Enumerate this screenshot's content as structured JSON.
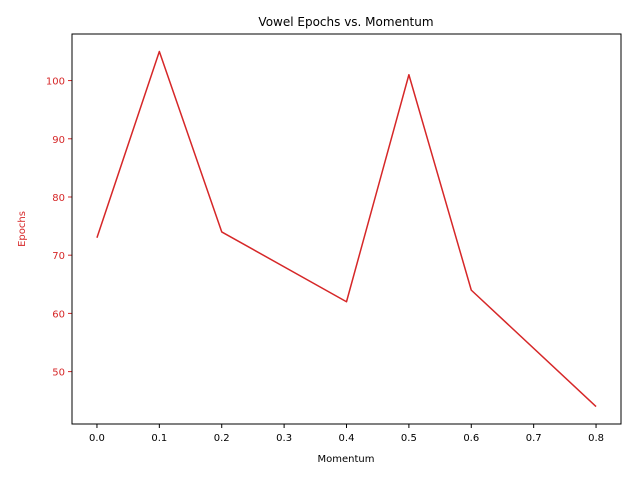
{
  "chart_data": {
    "type": "line",
    "title": "Vowel Epochs vs. Momentum",
    "xlabel": "Momentum",
    "ylabel": "Epochs",
    "x": [
      0.0,
      0.1,
      0.2,
      0.4,
      0.5,
      0.6,
      0.8
    ],
    "series": [
      {
        "values": [
          73,
          105,
          74,
          62,
          101,
          64,
          44
        ],
        "color": "#d62728"
      }
    ],
    "xlim": [
      -0.04,
      0.84
    ],
    "ylim": [
      41,
      108
    ],
    "xticks": [
      "0.0",
      "0.1",
      "0.2",
      "0.3",
      "0.4",
      "0.5",
      "0.6",
      "0.7",
      "0.8"
    ],
    "xtick_values": [
      0.0,
      0.1,
      0.2,
      0.3,
      0.4,
      0.5,
      0.6,
      0.7,
      0.8
    ],
    "yticks": [
      "50",
      "60",
      "70",
      "80",
      "90",
      "100"
    ],
    "ytick_values": [
      50,
      60,
      70,
      80,
      90,
      100
    ],
    "ylabel_color": "#d62728",
    "ytick_color": "#d62728",
    "grid": false,
    "legend": "none"
  }
}
